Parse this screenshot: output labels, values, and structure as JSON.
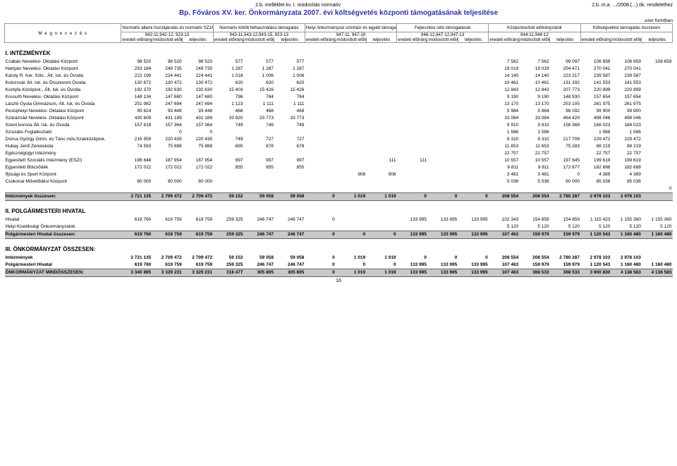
{
  "header": {
    "annex_left": "2.b. melléklet kv. I. módosítás  normatív",
    "annex_right1": "2.b. m.a. .../2008.(...) ök. rendelethez",
    "title_left": "Bp. Főváros XV. ker. Önkormányzata 2007.",
    "title_right": "évi költségvetés központi támogatásának teljesítése",
    "unit": "ezer forintban"
  },
  "colgroups": [
    {
      "title": "Normatív állami hozzájárulás és normatív SZJA",
      "code": "942-11,942-12, 923-13"
    },
    {
      "title": "Normatív kötött felhasználású támogatás",
      "code": "943-11,943-12,943-15, 923-13"
    },
    {
      "title": "Helyi önkormányzat színházi és egyéb támogatása",
      "code": "947-11, 947-19"
    },
    {
      "title": "Fejlesztési célú támogatások",
      "code": "946-12,947-12,947-13"
    },
    {
      "title": "Központosított előirányzatok",
      "code": "944-11,944-12"
    },
    {
      "title": "Költségvetési támogatás összesen",
      "code": ""
    }
  ],
  "subheads": [
    "eredeti előirányzat",
    "módosított előirányzat",
    "teljesítés"
  ],
  "megn_label": "M e g n e v e z é s",
  "sections": {
    "s1": {
      "title": "I. INTÉZMÉNYEK",
      "rows": [
        [
          "Czabán Nevelési- Oktatási Központ",
          "98 520",
          "98 520",
          "98 520",
          "577",
          "577",
          "577",
          "",
          "",
          "",
          "",
          "",
          "",
          "7 562",
          "7 562",
          "99 097",
          "106 659",
          "106 659",
          "106 659"
        ],
        [
          "Hartyán Nevelési- Oktatási Központ",
          "253 184",
          "249 735",
          "249 735",
          "1 287",
          "1 287",
          "1 287",
          "",
          "",
          "",
          "",
          "",
          "",
          "19 019",
          "19 019",
          "254 471",
          "270 041",
          "270 041",
          ""
        ],
        [
          "Károly R. Ker. Szki., Ált. Isk. és Óvoda",
          "222 199",
          "224 441",
          "224 441",
          "1 018",
          "1 006",
          "1 006",
          "",
          "",
          "",
          "",
          "",
          "",
          "14 140",
          "14 140",
          "223 217",
          "239 587",
          "239 587",
          ""
        ],
        [
          "Kolozsvár Ált. Isk. és Összevont Óvoda",
          "130 672",
          "130 472",
          "130 472",
          "620",
          "620",
          "620",
          "",
          "",
          "",
          "",
          "",
          "",
          "10 461",
          "10 461",
          "131 292",
          "141 553",
          "141 553",
          ""
        ],
        [
          "Kontyfa Középisk., Ált. Isk. és Óvoda",
          "192 370",
          "192 630",
          "192 630",
          "15 403",
          "15 426",
          "15 426",
          "",
          "",
          "",
          "",
          "",
          "",
          "12 843",
          "12 843",
          "207 773",
          "220 899",
          "220 899",
          ""
        ],
        [
          "Kossuth Nevelési- Oktatási Központ",
          "148 134",
          "147 680",
          "147 680",
          "796",
          "784",
          "784",
          "",
          "",
          "",
          "",
          "",
          "",
          "9 190",
          "9 190",
          "148 930",
          "157 654",
          "157 654",
          ""
        ],
        [
          "László Gyula Gimnázium, Ált. Isk. és Óvoda",
          "251 982",
          "247 694",
          "247 694",
          "1 123",
          "1 111",
          "1 111",
          "",
          "",
          "",
          "",
          "",
          "",
          "13 170",
          "13 170",
          "253 105",
          "261 975",
          "261 975",
          ""
        ],
        [
          "Pestújhelyi Nevelési- Oktatási Központ",
          "95 624",
          "93 448",
          "93 448",
          "468",
          "468",
          "468",
          "",
          "",
          "",
          "",
          "",
          "",
          "5 984",
          "5 984",
          "96 092",
          "99 900",
          "99 900",
          ""
        ],
        [
          "Száraznád Nevelési- Oktatási Központ",
          "430 609",
          "431 189",
          "431 189",
          "33 820",
          "33 773",
          "33 773",
          "",
          "",
          "",
          "",
          "",
          "",
          "33 084",
          "33 084",
          "464 429",
          "498 046",
          "498 046",
          ""
        ],
        [
          "Szent korona Ált. Isk. és Óvoda",
          "157 619",
          "157 364",
          "157 364",
          "749",
          "749",
          "749",
          "",
          "",
          "",
          "",
          "",
          "",
          "9 910",
          "9 910",
          "158 368",
          "168 023",
          "168 023",
          ""
        ],
        [
          "Szociális Foglalkoztató",
          "",
          "0",
          "0",
          "",
          "",
          "",
          "",
          "",
          "",
          "",
          "",
          "",
          "1 586",
          "1 586",
          "",
          "1 586",
          "1 586",
          ""
        ],
        [
          "Dózsa György Gimn. és Tánc.műv.Szakközépisk.",
          "216 959",
          "220 435",
          "220 435",
          "749",
          "727",
          "727",
          "",
          "",
          "",
          "",
          "",
          "",
          "8 310",
          "8 310",
          "217 708",
          "229 472",
          "229 472",
          ""
        ],
        [
          "Hubay Jenő Zeneiskola",
          "74 593",
          "75 888",
          "75 888",
          "690",
          "678",
          "678",
          "",
          "",
          "",
          "",
          "",
          "",
          "11 653",
          "11 653",
          "75 283",
          "88 219",
          "88 219",
          ""
        ],
        [
          "Egészségügyi Intézmény",
          "",
          "",
          "",
          "",
          "",
          "",
          "",
          "",
          "",
          "",
          "",
          "",
          "22 757",
          "22 757",
          "",
          "22 757",
          "22 757",
          ""
        ],
        [
          "Egyesített Szociális Intézmény (ESZI)",
          "196 648",
          "187 954",
          "187 954",
          "997",
          "997",
          "997",
          "",
          "",
          "111",
          "111",
          "",
          "",
          "10 557",
          "10 557",
          "197 645",
          "199 619",
          "199 619",
          ""
        ],
        [
          "Egyesített Bölcsődék",
          "172 022",
          "172 022",
          "172 022",
          "855",
          "855",
          "855",
          "",
          "",
          "",
          "",
          "",
          "",
          "9 811",
          "9 811",
          "172 877",
          "182 688",
          "182 688",
          ""
        ],
        [
          "Ifjúsági és Sport Központ",
          "",
          "",
          "",
          "",
          "",
          "",
          "",
          "908",
          "908",
          "",
          "",
          "",
          "3 481",
          "3 481",
          "0",
          "4 389",
          "4 389",
          ""
        ],
        [
          "Csokonai Művelődési Központ",
          "80 000",
          "80 000",
          "80 000",
          "",
          "",
          "",
          "",
          "",
          "",
          "",
          "",
          "",
          "5 036",
          "5 036",
          "80 000",
          "85 036",
          "85 036",
          ""
        ],
        [
          "",
          "",
          "",
          "",
          "",
          "",
          "",
          "",
          "",
          "",
          "",
          "",
          "",
          "",
          "",
          "",
          "",
          "",
          "0"
        ]
      ],
      "total": [
        "Intézmények összesen:",
        "2 721 135",
        "2 709 472",
        "2 709 472",
        "59 152",
        "59 058",
        "59 058",
        "0",
        "1 019",
        "1 019",
        "0",
        "0",
        "0",
        "208 554",
        "208 554",
        "2 780 287",
        "2 978 103",
        "2 978 103",
        ""
      ]
    },
    "s2": {
      "title": "II. POLGÁRMESTERI HIVATAL",
      "rows": [
        [
          "Hivatal",
          "619 760",
          "619 759",
          "619 759",
          "259 325",
          "246 747",
          "246 747",
          "0",
          "",
          "",
          "133 995",
          "133 995",
          "133 995",
          "102 343",
          "154 859",
          "154 859",
          "1 115 423",
          "1 155 360",
          "1 155 360"
        ],
        [
          "Helyi Kisebbségi Önkormányzatok",
          "",
          "",
          "",
          "",
          "",
          "",
          "",
          "",
          "",
          "",
          "",
          "",
          "5 120",
          "5 120",
          "5 120",
          "5 120",
          "5 120",
          "5 120"
        ]
      ],
      "total": [
        "Polgármesteri Hivatal összesen:",
        "619 760",
        "619 759",
        "619 759",
        "259 325",
        "246 747",
        "246 747",
        "0",
        "0",
        "0",
        "133 995",
        "133 995",
        "133 995",
        "107 463",
        "159 979",
        "159 979",
        "1 120 543",
        "1 160 480",
        "1 160 480"
      ]
    },
    "s3": {
      "title": "III. ÖNKORMÁNYZAT ÖSSZESEN:",
      "rows": [
        [
          "Intézmények",
          "2 721 135",
          "2 709 472",
          "2 709 472",
          "59 152",
          "59 058",
          "59 058",
          "0",
          "1 019",
          "1 019",
          "0",
          "0",
          "0",
          "208 554",
          "208 554",
          "2 780 287",
          "2 978 103",
          "2 978 103",
          ""
        ],
        [
          "Polgármesteri Hivatal",
          "619 760",
          "619 759",
          "619 759",
          "259 325",
          "246 747",
          "246 747",
          "0",
          "0",
          "0",
          "133 995",
          "133 995",
          "133 995",
          "107 463",
          "159 979",
          "159 979",
          "1 120 543",
          "1 160 480",
          "1 160 480"
        ]
      ],
      "total": [
        "ÖNKORMÁNYZAT MINDÖSSZESEN:",
        "3 340 895",
        "3 329 231",
        "3 329 231",
        "318 477",
        "305 805",
        "305 805",
        "0",
        "1 019",
        "1 019",
        "133 995",
        "133 995",
        "133 995",
        "107 463",
        "368 533",
        "368 533",
        "3 900 830",
        "4 138 583",
        "4 138 583"
      ]
    }
  },
  "pagenum": "16",
  "style": {
    "title_color": "#2a2aa0",
    "total_bg": "#c9c9c9",
    "border": "#999999",
    "font_body": 6.5,
    "font_title": 10
  }
}
